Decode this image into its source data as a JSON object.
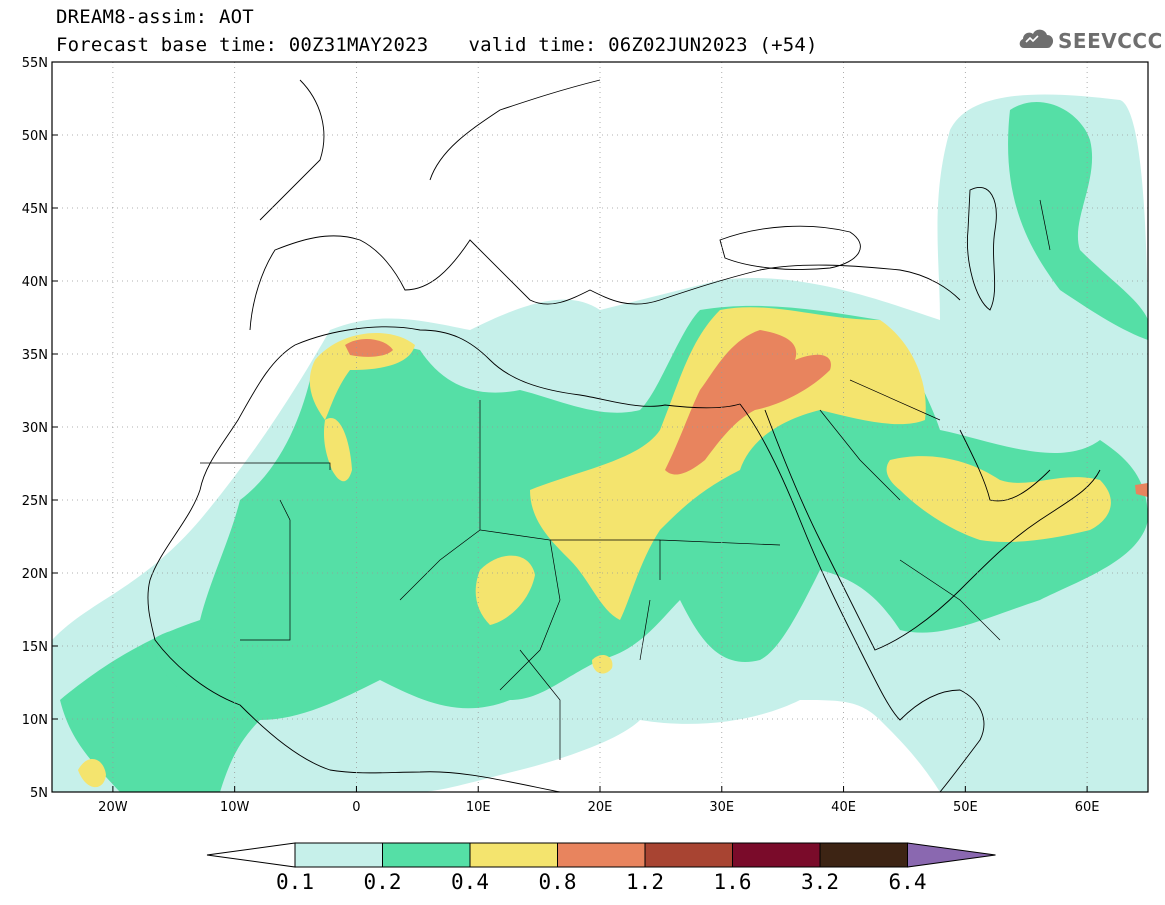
{
  "title": {
    "line1": "DREAM8-assim: AOT",
    "base_label": "Forecast base time: 00Z31MAY2023",
    "valid_label": "valid time: 06Z02JUN2023 (+54)"
  },
  "logo": {
    "text": "SEEVCCC",
    "icon": "cloud-icon"
  },
  "map": {
    "lon_range": [
      -25,
      65
    ],
    "lat_range": [
      5,
      55
    ],
    "lat_ticks": [
      "55N",
      "50N",
      "45N",
      "40N",
      "35N",
      "30N",
      "25N",
      "20N",
      "15N",
      "10N",
      "5N"
    ],
    "lon_ticks": [
      "20W",
      "10W",
      "0",
      "10E",
      "20E",
      "30E",
      "40E",
      "50E",
      "60E"
    ]
  },
  "colorbar": {
    "levels": [
      "0.1",
      "0.2",
      "0.4",
      "0.8",
      "1.2",
      "1.6",
      "3.2",
      "6.4"
    ],
    "colors": [
      "#ffffff",
      "#c6f0ea",
      "#55dfa6",
      "#f4e46e",
      "#e8845e",
      "#a84432",
      "#7a0b2a",
      "#3d2414",
      "#8a68b0"
    ]
  }
}
